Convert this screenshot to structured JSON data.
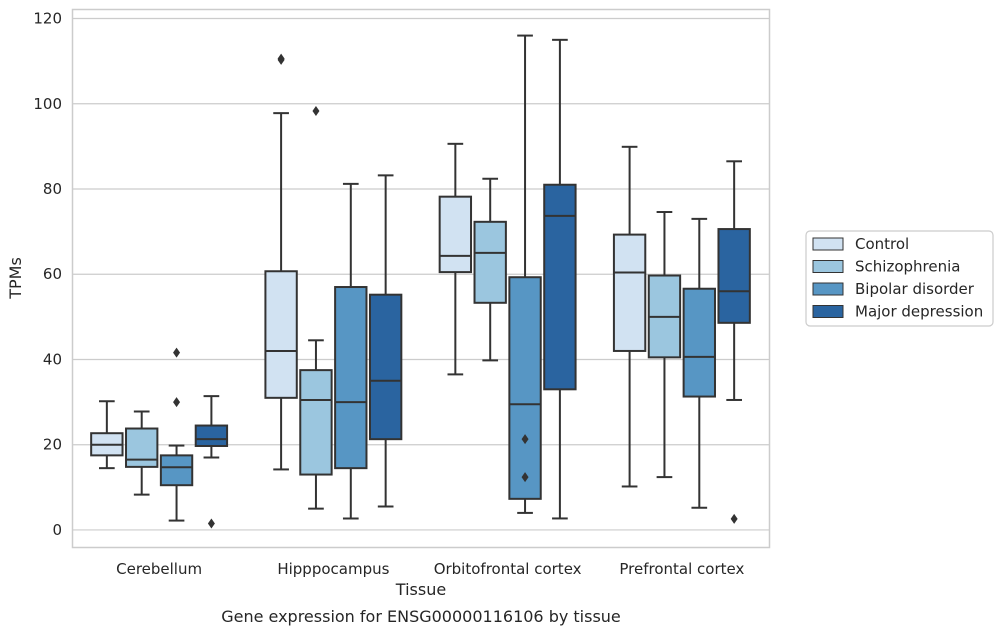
{
  "chart_data": {
    "type": "boxplot",
    "title": "Gene expression for ENSG00000116106 by tissue",
    "xlabel": "Tissue",
    "ylabel": "TPMs",
    "ylim": [
      -4,
      122
    ],
    "yticks": [
      0,
      20,
      40,
      60,
      80,
      100,
      120
    ],
    "grid": "horizontal",
    "legend_position": "right",
    "categories": [
      "Cerebellum",
      "Hipppocampus",
      "Orbitofrontal cortex",
      "Prefrontal cortex"
    ],
    "series": [
      {
        "name": "Control",
        "color": "#d1e2f2",
        "boxes": [
          {
            "whislo": 14.5,
            "q1": 17.5,
            "med": 20.0,
            "q3": 22.7,
            "whishi": 30.2,
            "fliers": []
          },
          {
            "whislo": 14.2,
            "q1": 31.0,
            "med": 42.0,
            "q3": 60.7,
            "whishi": 97.8,
            "fliers": [
              110.3,
              110.6
            ]
          },
          {
            "whislo": 36.5,
            "q1": 60.5,
            "med": 64.3,
            "q3": 78.2,
            "whishi": 90.6,
            "fliers": []
          },
          {
            "whislo": 10.2,
            "q1": 42.0,
            "med": 60.4,
            "q3": 69.3,
            "whishi": 89.9,
            "fliers": []
          }
        ]
      },
      {
        "name": "Schizophrenia",
        "color": "#9bc6df",
        "boxes": [
          {
            "whislo": 8.3,
            "q1": 14.8,
            "med": 16.5,
            "q3": 23.8,
            "whishi": 27.8,
            "fliers": []
          },
          {
            "whislo": 5.0,
            "q1": 13.0,
            "med": 30.5,
            "q3": 37.5,
            "whishi": 44.5,
            "fliers": [
              98.3
            ]
          },
          {
            "whislo": 39.8,
            "q1": 53.3,
            "med": 65.0,
            "q3": 72.3,
            "whishi": 82.4,
            "fliers": []
          },
          {
            "whislo": 12.4,
            "q1": 40.5,
            "med": 50.0,
            "q3": 59.7,
            "whishi": 74.6,
            "fliers": []
          }
        ]
      },
      {
        "name": "Bipolar disorder",
        "color": "#5796c4",
        "boxes": [
          {
            "whislo": 2.2,
            "q1": 10.5,
            "med": 14.7,
            "q3": 17.5,
            "whishi": 19.8,
            "fliers": [
              41.6,
              30.0
            ]
          },
          {
            "whislo": 2.7,
            "q1": 14.5,
            "med": 30.0,
            "q3": 57.0,
            "whishi": 81.2,
            "fliers": []
          },
          {
            "whislo": 4.0,
            "q1": 7.3,
            "med": 29.5,
            "q3": 59.3,
            "whishi": 116.0,
            "fliers": [
              21.3,
              12.4
            ]
          },
          {
            "whislo": 5.2,
            "q1": 31.3,
            "med": 40.6,
            "q3": 56.6,
            "whishi": 73.0,
            "fliers": []
          }
        ]
      },
      {
        "name": "Major depression",
        "color": "#2a64a0",
        "boxes": [
          {
            "whislo": 17.0,
            "q1": 19.7,
            "med": 21.3,
            "q3": 24.5,
            "whishi": 31.4,
            "fliers": [
              1.5
            ]
          },
          {
            "whislo": 5.5,
            "q1": 21.3,
            "med": 35.0,
            "q3": 55.2,
            "whishi": 83.2,
            "fliers": []
          },
          {
            "whislo": 2.7,
            "q1": 33.0,
            "med": 73.7,
            "q3": 81.0,
            "whishi": 115.0,
            "fliers": []
          },
          {
            "whislo": 30.5,
            "q1": 48.6,
            "med": 56.0,
            "q3": 70.6,
            "whishi": 86.5,
            "fliers": [
              2.6
            ]
          }
        ]
      }
    ],
    "colors": {
      "grid": "#cccccc",
      "frame": "#cccccc",
      "line": "#333333",
      "text": "#262626"
    }
  }
}
